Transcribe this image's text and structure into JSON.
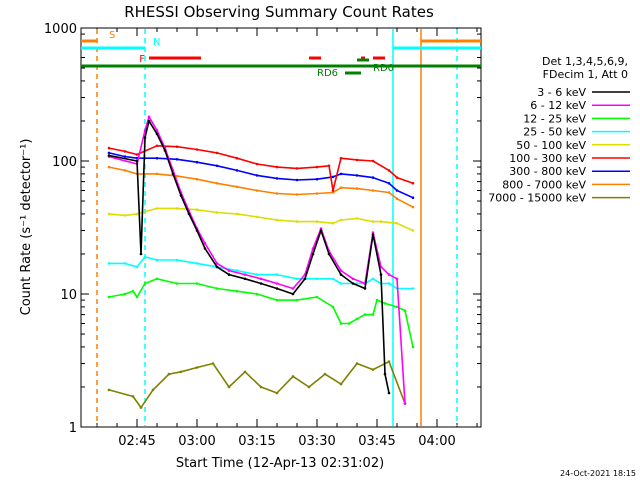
{
  "chart_data": {
    "type": "line",
    "title": "RHESSI Observing Summary Count Rates",
    "xlabel": "Start Time (12-Apr-13 02:31:02)",
    "ylabel": "Count Rate (s⁻¹ detector⁻¹)",
    "y_scale": "log",
    "ylim": [
      1,
      1000
    ],
    "xlim": [
      "02:31",
      "04:11"
    ],
    "x_ticks": [
      "02:45",
      "03:00",
      "03:15",
      "03:30",
      "03:45",
      "04:00"
    ],
    "y_ticks": [
      "1",
      "10",
      "100",
      "1000"
    ],
    "grid": false,
    "legend_position": "right",
    "legend_header": [
      "Det 1,3,4,5,6,9,",
      "FDecim 1, Att 0"
    ],
    "footer_date": "24-Oct-2021 18:15",
    "series": [
      {
        "name": "3 - 6 keV",
        "color": "#000000",
        "x": [
          "02:38",
          "02:45",
          "02:46",
          "02:47",
          "02:48",
          "02:50",
          "02:52",
          "02:54",
          "02:56",
          "02:58",
          "03:00",
          "03:02",
          "03:05",
          "03:08",
          "03:12",
          "03:16",
          "03:20",
          "03:24",
          "03:27",
          "03:29",
          "03:31",
          "03:33",
          "03:36",
          "03:39",
          "03:42",
          "03:44",
          "03:46",
          "03:47",
          "03:48"
        ],
        "y": [
          110,
          100,
          20,
          150,
          200,
          160,
          120,
          80,
          55,
          40,
          30,
          22,
          16,
          14,
          13,
          12,
          11,
          10,
          13,
          20,
          30,
          20,
          14,
          12,
          11,
          28,
          14,
          2.5,
          1.8
        ]
      },
      {
        "name": "6 - 12 keV",
        "color": "#ff00ff",
        "x": [
          "02:38",
          "02:45",
          "02:47",
          "02:48",
          "02:50",
          "02:52",
          "02:54",
          "02:56",
          "02:58",
          "03:00",
          "03:02",
          "03:05",
          "03:08",
          "03:12",
          "03:16",
          "03:20",
          "03:24",
          "03:27",
          "03:29",
          "03:31",
          "03:33",
          "03:36",
          "03:39",
          "03:42",
          "03:44",
          "03:46",
          "03:48",
          "03:50",
          "03:52"
        ],
        "y": [
          108,
          95,
          170,
          215,
          170,
          125,
          85,
          58,
          42,
          31,
          24,
          17,
          15,
          14,
          13,
          12,
          11,
          14,
          22,
          31,
          21,
          15,
          13,
          12,
          29,
          16,
          14,
          13,
          1.5
        ]
      },
      {
        "name": "12 - 25 keV",
        "color": "#00ff00",
        "x": [
          "02:38",
          "02:42",
          "02:44",
          "02:45",
          "02:47",
          "02:50",
          "02:55",
          "03:00",
          "03:05",
          "03:10",
          "03:15",
          "03:20",
          "03:25",
          "03:30",
          "03:34",
          "03:36",
          "03:38",
          "03:40",
          "03:42",
          "03:44",
          "03:45",
          "03:47",
          "03:50",
          "03:52",
          "03:54"
        ],
        "y": [
          9.5,
          10,
          10.5,
          9.5,
          12,
          13,
          12,
          12,
          11,
          10.5,
          10,
          9,
          9,
          9.5,
          8,
          6,
          6,
          6.5,
          7,
          7,
          9,
          8.5,
          8,
          7.5,
          4
        ]
      },
      {
        "name": "25 - 50 keV",
        "color": "#00ffff",
        "x": [
          "02:38",
          "02:42",
          "02:45",
          "02:47",
          "02:50",
          "02:55",
          "03:00",
          "03:05",
          "03:10",
          "03:15",
          "03:20",
          "03:25",
          "03:30",
          "03:34",
          "03:36",
          "03:40",
          "03:42",
          "03:44",
          "03:46",
          "03:48",
          "03:50",
          "03:54"
        ],
        "y": [
          17,
          17,
          16,
          19,
          18,
          18,
          17,
          16,
          15,
          14,
          14,
          13,
          13,
          13,
          12,
          12,
          12,
          13,
          12,
          12,
          11,
          11
        ]
      },
      {
        "name": "50 - 100 keV",
        "color": "#dddd00",
        "x": [
          "02:38",
          "02:42",
          "02:45",
          "02:50",
          "02:55",
          "03:00",
          "03:05",
          "03:10",
          "03:15",
          "03:20",
          "03:25",
          "03:30",
          "03:34",
          "03:36",
          "03:40",
          "03:44",
          "03:46",
          "03:50",
          "03:54"
        ],
        "y": [
          40,
          39,
          40,
          44,
          44,
          43,
          41,
          40,
          38,
          36,
          35,
          35,
          34,
          36,
          37,
          35,
          35,
          34,
          30
        ]
      },
      {
        "name": "100 - 300 keV",
        "color": "#ff0000",
        "x": [
          "02:38",
          "02:42",
          "02:45",
          "02:50",
          "02:55",
          "03:00",
          "03:05",
          "03:10",
          "03:15",
          "03:20",
          "03:25",
          "03:30",
          "03:33",
          "03:34",
          "03:36",
          "03:40",
          "03:44",
          "03:48",
          "03:50",
          "03:54"
        ],
        "y": [
          125,
          118,
          112,
          130,
          128,
          122,
          115,
          105,
          95,
          90,
          88,
          90,
          92,
          60,
          105,
          102,
          100,
          85,
          75,
          68
        ]
      },
      {
        "name": "300 - 800 keV",
        "color": "#0000ff",
        "x": [
          "02:38",
          "02:42",
          "02:45",
          "02:50",
          "02:55",
          "03:00",
          "03:05",
          "03:10",
          "03:15",
          "03:20",
          "03:25",
          "03:30",
          "03:34",
          "03:36",
          "03:40",
          "03:44",
          "03:48",
          "03:50",
          "03:54"
        ],
        "y": [
          115,
          108,
          105,
          105,
          103,
          98,
          92,
          85,
          78,
          74,
          72,
          73,
          76,
          80,
          78,
          75,
          68,
          60,
          53
        ]
      },
      {
        "name": "800 - 7000 keV",
        "color": "#ff8000",
        "x": [
          "02:38",
          "02:42",
          "02:45",
          "02:50",
          "02:55",
          "03:00",
          "03:05",
          "03:10",
          "03:15",
          "03:20",
          "03:25",
          "03:30",
          "03:34",
          "03:36",
          "03:40",
          "03:44",
          "03:48",
          "03:50",
          "03:54"
        ],
        "y": [
          90,
          85,
          80,
          80,
          77,
          73,
          68,
          64,
          60,
          57,
          56,
          57,
          58,
          63,
          62,
          60,
          58,
          52,
          45
        ]
      },
      {
        "name": "7000 - 15000 keV",
        "color": "#808000",
        "x": [
          "02:38",
          "02:44",
          "02:46",
          "02:49",
          "02:53",
          "02:56",
          "03:00",
          "03:04",
          "03:08",
          "03:12",
          "03:16",
          "03:20",
          "03:24",
          "03:28",
          "03:32",
          "03:36",
          "03:40",
          "03:44",
          "03:48",
          "03:52"
        ],
        "y": [
          1.9,
          1.7,
          1.4,
          1.9,
          2.5,
          2.6,
          2.8,
          3,
          2,
          2.6,
          2,
          1.8,
          2.4,
          2,
          2.5,
          2.1,
          3,
          2.7,
          3.1,
          1.5
        ]
      }
    ],
    "annotations": {
      "vlines": [
        {
          "x": "02:35",
          "color": "#ff8000",
          "style": "dashed"
        },
        {
          "x": "02:47",
          "color": "#00ffff",
          "style": "dashed"
        },
        {
          "x": "03:49",
          "color": "#00ffff",
          "style": "solid"
        },
        {
          "x": "03:56",
          "color": "#ff8000",
          "style": "solid"
        },
        {
          "x": "04:05",
          "color": "#00ffff",
          "style": "dashed"
        }
      ],
      "flags": [
        {
          "label": "S",
          "color": "#ff8000",
          "segments": [
            [
              "02:31",
              "02:35"
            ],
            [
              "03:56",
              "04:11"
            ]
          ]
        },
        {
          "label": "N",
          "color": "#00ffff",
          "segments": [
            [
              "02:31",
              "02:47"
            ],
            [
              "03:49",
              "04:11"
            ]
          ]
        },
        {
          "label": "F",
          "color": "#ff0000",
          "segments": [
            [
              "02:48",
              "03:01"
            ],
            [
              "03:28",
              "03:31"
            ],
            [
              "03:41",
              "03:42"
            ],
            [
              "03:44",
              "03:47"
            ]
          ]
        },
        {
          "label": "RD0",
          "color": "#008000",
          "segments": [
            [
              "03:40",
              "03:43"
            ]
          ]
        },
        {
          "label": "RD6",
          "color": "#008000",
          "segments": [
            [
              "03:37",
              "03:41"
            ]
          ]
        },
        {
          "label": "",
          "color": "#008000",
          "segments": [
            [
              "02:31",
              "04:11"
            ]
          ]
        }
      ]
    }
  }
}
